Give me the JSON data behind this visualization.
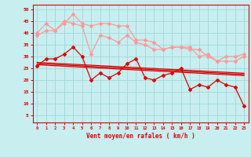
{
  "x": [
    0,
    1,
    2,
    3,
    4,
    5,
    6,
    7,
    8,
    9,
    10,
    11,
    12,
    13,
    14,
    15,
    16,
    17,
    18,
    19,
    20,
    21,
    22,
    23
  ],
  "line1": [
    26,
    29,
    29,
    31,
    34,
    30,
    20,
    23,
    21,
    23,
    27,
    29,
    21,
    20,
    22,
    23,
    25,
    16,
    18,
    17,
    20,
    18,
    17,
    9
  ],
  "line2_trend": [
    26.5,
    26.3,
    26.1,
    25.9,
    25.7,
    25.5,
    25.3,
    25.1,
    24.9,
    24.7,
    24.5,
    24.3,
    24.1,
    23.9,
    23.7,
    23.5,
    23.3,
    23.1,
    22.9,
    22.7,
    22.5,
    22.3,
    22.1,
    21.9
  ],
  "line3_trend": [
    27.0,
    26.8,
    26.6,
    26.4,
    26.2,
    26.0,
    25.8,
    25.6,
    25.4,
    25.2,
    25.0,
    24.8,
    24.6,
    24.4,
    24.2,
    24.0,
    23.8,
    23.6,
    23.4,
    23.2,
    23.0,
    22.8,
    22.6,
    22.4
  ],
  "line4_trend": [
    27.5,
    27.3,
    27.1,
    26.9,
    26.7,
    26.5,
    26.3,
    26.1,
    25.9,
    25.7,
    25.5,
    25.3,
    25.1,
    24.9,
    24.7,
    24.5,
    24.3,
    24.1,
    23.9,
    23.7,
    23.5,
    23.3,
    23.1,
    22.9
  ],
  "line5_light": [
    40,
    44,
    41,
    45,
    44,
    43,
    31,
    39,
    38,
    36,
    39,
    36,
    35,
    33,
    33,
    34,
    34,
    34,
    30,
    31,
    28,
    30,
    30,
    31
  ],
  "line6_light": [
    39,
    41,
    41,
    44,
    48,
    44,
    43,
    44,
    44,
    43,
    43,
    37,
    37,
    36,
    33,
    34,
    34,
    33,
    33,
    30,
    28,
    28,
    28,
    30
  ],
  "background_color": "#c8eef0",
  "grid_color": "#a0d8d8",
  "line_color_dark": "#dd0000",
  "line_color_light": "#ff9999",
  "xlabel": "Vent moyen/en rafales ( km/h )",
  "ylabel_ticks": [
    5,
    10,
    15,
    20,
    25,
    30,
    35,
    40,
    45,
    50
  ],
  "ylim": [
    2,
    52
  ],
  "xlim": [
    -0.5,
    23.5
  ]
}
